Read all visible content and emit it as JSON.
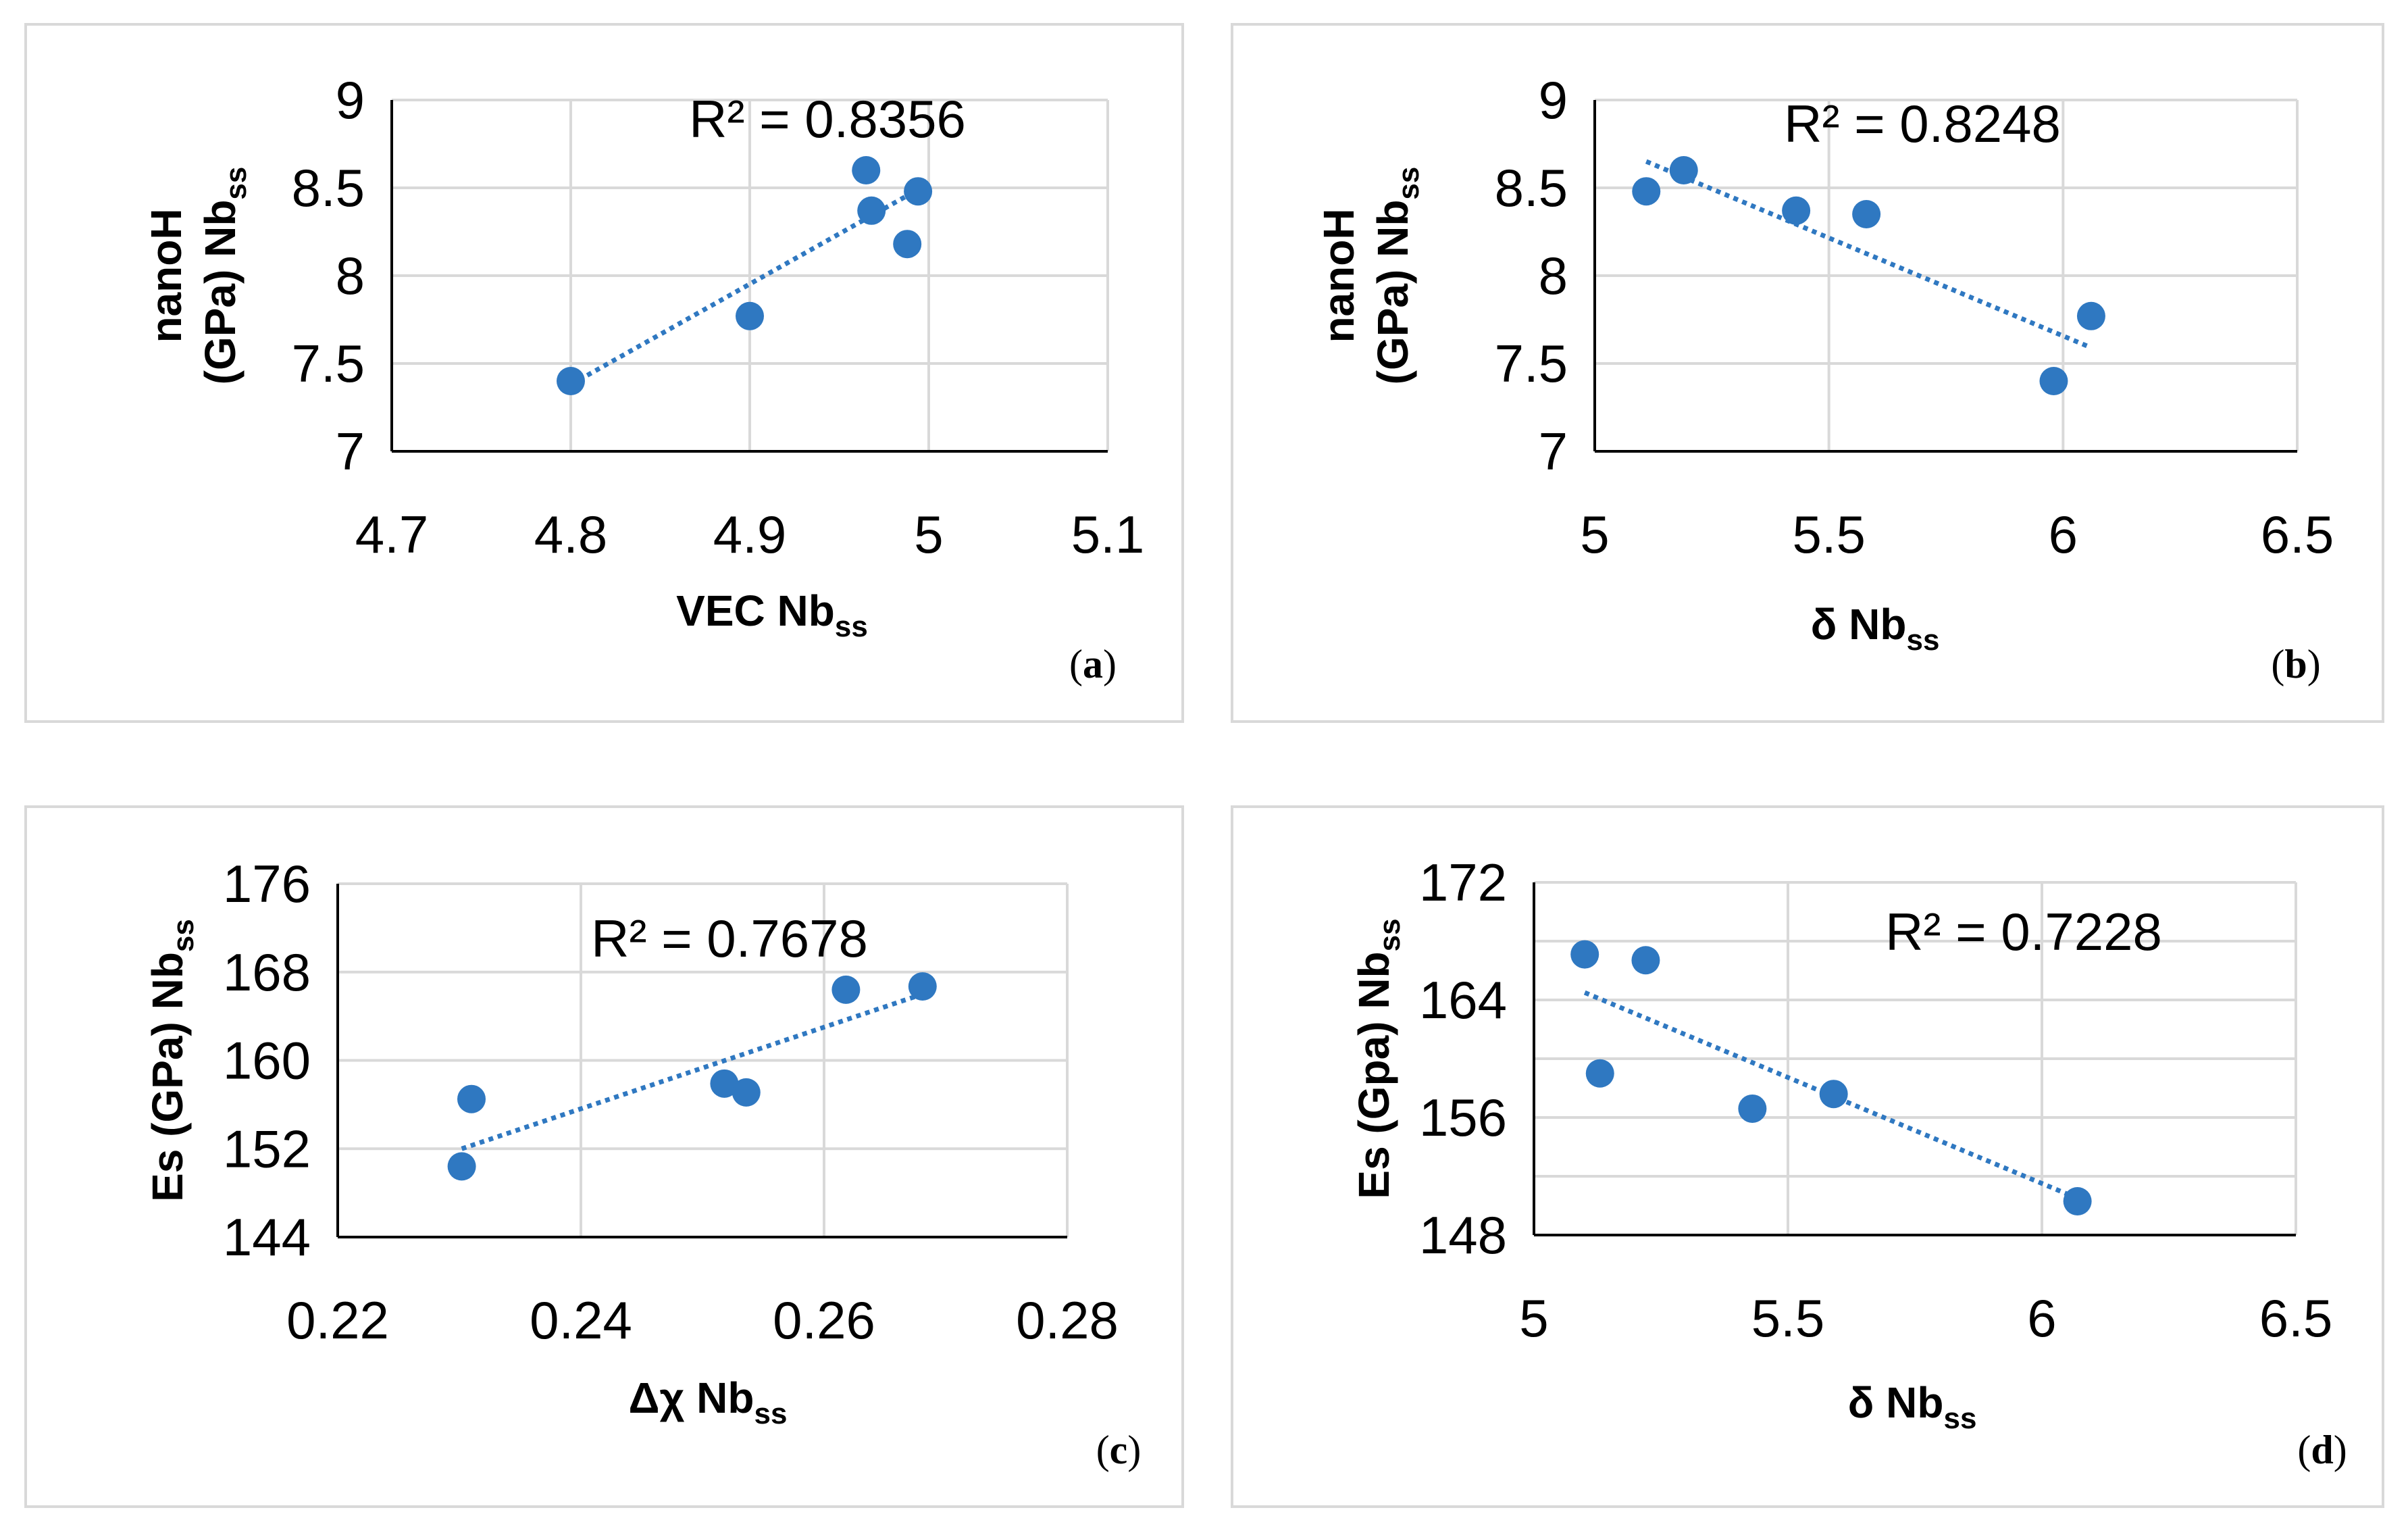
{
  "colors": {
    "marker": "#2f78c1",
    "gridline": "#d9d9d9",
    "axis": "#000000",
    "border": "#d9d9d9"
  },
  "chart_data": [
    {
      "panel": "a",
      "type": "scatter",
      "ylabel_line1": "nanoH",
      "ylabel_line2": "(GPa) Nb",
      "ylabel_sub": "ss",
      "xlabel": "VEC Nb",
      "xlabel_sub": "ss",
      "xlim": [
        4.7,
        5.1
      ],
      "ylim": [
        7,
        9
      ],
      "xticks": [
        4.7,
        4.8,
        4.9,
        5,
        5.1
      ],
      "xtick_labels": [
        "4.7",
        "4.8",
        "4.9",
        "5",
        "5.1"
      ],
      "yticks": [
        7,
        7.5,
        8,
        8.5,
        9
      ],
      "ytick_labels": [
        "7",
        "7.5",
        "8",
        "8.5",
        "9"
      ],
      "grid": true,
      "x": [
        4.8,
        4.9,
        4.965,
        4.968,
        4.988,
        4.994
      ],
      "y": [
        7.4,
        7.77,
        8.6,
        8.37,
        8.18,
        8.48
      ],
      "trend": {
        "x": [
          4.8,
          4.994
        ],
        "y": [
          7.38,
          8.49
        ]
      },
      "r2_text": "R² = 0.8356",
      "tag": "a"
    },
    {
      "panel": "b",
      "type": "scatter",
      "ylabel_line1": "nanoH",
      "ylabel_line2": "(GPa) Nb",
      "ylabel_sub": "ss",
      "xlabel": "δ Nb",
      "xlabel_sub": "ss",
      "xlim": [
        5,
        6.5
      ],
      "ylim": [
        7,
        9
      ],
      "xticks": [
        5,
        5.5,
        6,
        6.5
      ],
      "xtick_labels": [
        "5",
        "5.5",
        "6",
        "6.5"
      ],
      "yticks": [
        7,
        7.5,
        8,
        8.5,
        9
      ],
      "ytick_labels": [
        "7",
        "7.5",
        "8",
        "8.5",
        "9"
      ],
      "grid": true,
      "x": [
        5.11,
        5.19,
        5.43,
        5.58,
        5.98,
        6.06
      ],
      "y": [
        8.48,
        8.6,
        8.37,
        8.35,
        7.4,
        7.77
      ],
      "trend": {
        "x": [
          5.11,
          6.06
        ],
        "y": [
          8.65,
          7.59
        ]
      },
      "r2_text": "R² = 0.8248",
      "tag": "b"
    },
    {
      "panel": "c",
      "type": "scatter",
      "ylabel_line1": "Es (GPa) Nb",
      "ylabel_sub": "ss",
      "xlabel": "Δχ Nb",
      "xlabel_sub": "ss",
      "xlim": [
        0.22,
        0.28
      ],
      "ylim": [
        144,
        176
      ],
      "xticks": [
        0.22,
        0.24,
        0.26,
        0.28
      ],
      "xtick_labels": [
        "0.22",
        "0.24",
        "0.26",
        "0.28"
      ],
      "yticks": [
        144,
        152,
        160,
        168,
        176
      ],
      "ytick_labels": [
        "144",
        "152",
        "160",
        "168",
        "176"
      ],
      "grid": true,
      "x": [
        0.2302,
        0.231,
        0.2518,
        0.2536,
        0.2618,
        0.2681
      ],
      "y": [
        150.4,
        156.5,
        157.9,
        157.1,
        166.4,
        166.7
      ],
      "trend": {
        "x": [
          0.2302,
          0.2681
        ],
        "y": [
          152.0,
          166.0
        ]
      },
      "r2_text": "R² = 0.7678",
      "tag": "c"
    },
    {
      "panel": "d",
      "type": "scatter",
      "ylabel_line1": "Es (Gpa) Nb",
      "ylabel_sub": "ss",
      "xlabel": "δ Nb",
      "xlabel_sub": "ss",
      "xlim": [
        5,
        6.5
      ],
      "ylim": [
        148,
        172
      ],
      "xticks": [
        5,
        5.5,
        6,
        6.5
      ],
      "xtick_labels": [
        "5",
        "5.5",
        "6",
        "6.5"
      ],
      "yticks": [
        148,
        152,
        156,
        160,
        164,
        168,
        172
      ],
      "ytick_labels": [
        "148",
        "",
        "156",
        "",
        "164",
        "",
        "172"
      ],
      "grid": true,
      "x": [
        5.1,
        5.13,
        5.22,
        5.43,
        5.59,
        6.07
      ],
      "y": [
        167.1,
        159.0,
        166.7,
        156.6,
        157.6,
        150.3
      ],
      "trend": {
        "x": [
          5.1,
          6.07
        ],
        "y": [
          164.5,
          150.5
        ]
      },
      "r2_text": "R² = 0.7228",
      "tag": "d"
    }
  ]
}
